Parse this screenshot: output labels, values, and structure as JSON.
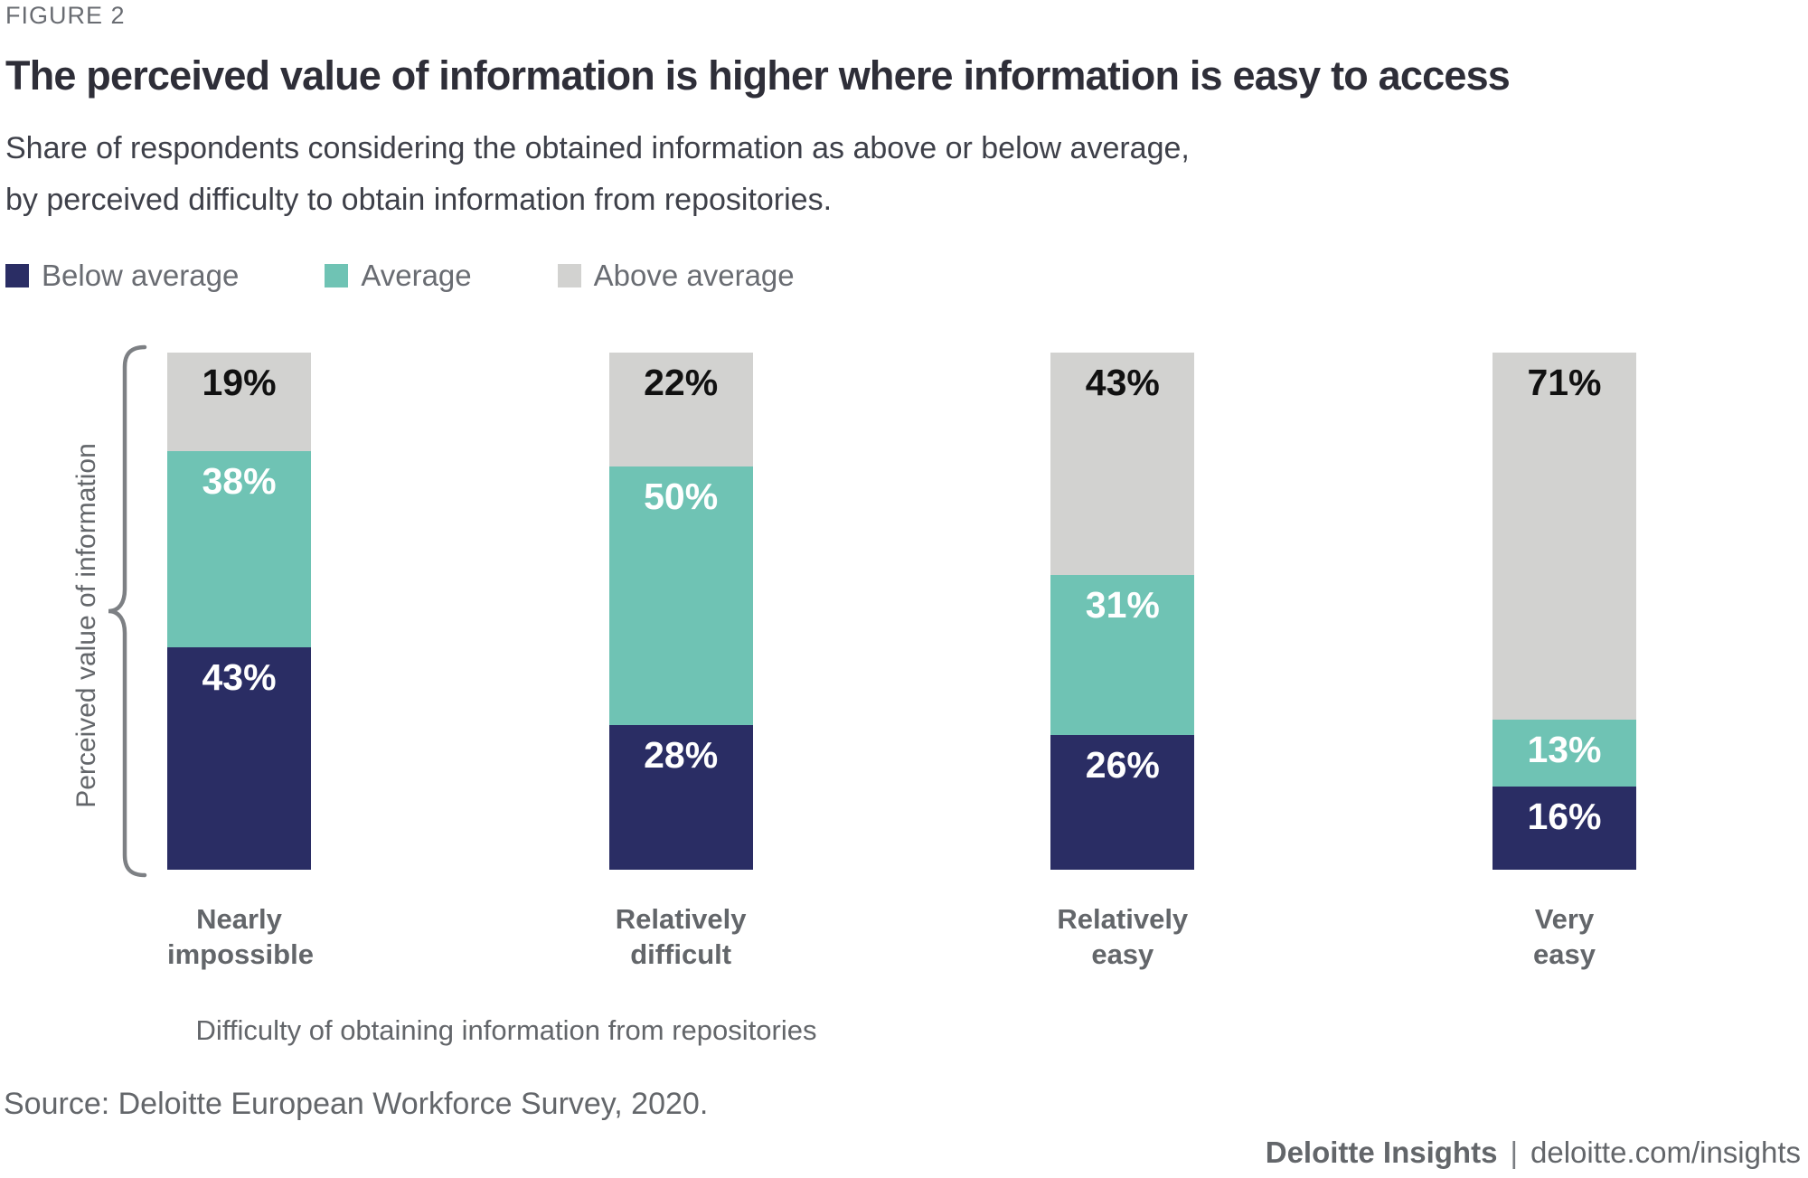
{
  "figure_label": "FIGURE 2",
  "title": "The perceived value of information is higher where information is easy to access",
  "subtitle_line1": "Share of respondents considering the obtained information as above or below average,",
  "subtitle_line2": "by perceived difficulty to obtain information from repositories.",
  "legend": [
    {
      "label": "Below average",
      "color": "#2A2D64"
    },
    {
      "label": "Average",
      "color": "#6FC3B4"
    },
    {
      "label": "Above average",
      "color": "#D2D2D0"
    }
  ],
  "y_axis_label": "Perceived value of information",
  "x_axis_label": "Difficulty of obtaining information from repositories",
  "source": "Source: Deloitte European Workforce Survey, 2020.",
  "footer": {
    "brand": "Deloitte Insights",
    "separator": "|",
    "url": "deloitte.com/insights"
  },
  "colors": {
    "below_average": "#2A2D64",
    "average": "#6FC3B4",
    "above_average": "#D2D2D0",
    "title_text": "#2E2E38",
    "body_text": "#63666A",
    "brace_stroke": "#7D8084"
  },
  "chart_data": {
    "type": "bar",
    "stacked": true,
    "unit": "%",
    "ylim": [
      0,
      100
    ],
    "grid": false,
    "legend_position": "top-left",
    "categories": [
      {
        "label": "Nearly impossible",
        "lines": [
          "Nearly",
          "impossible"
        ]
      },
      {
        "label": "Relatively difficult",
        "lines": [
          "Relatively",
          "difficult"
        ]
      },
      {
        "label": "Relatively easy",
        "lines": [
          "Relatively",
          "easy"
        ]
      },
      {
        "label": "Very easy",
        "lines": [
          "Very",
          "easy"
        ]
      }
    ],
    "series": [
      {
        "name": "Below average",
        "color": "#2A2D64",
        "label_color": "#FFFFFF",
        "values": [
          43,
          28,
          26,
          16
        ]
      },
      {
        "name": "Average",
        "color": "#6FC3B4",
        "label_color": "#FFFFFF",
        "values": [
          38,
          50,
          31,
          13
        ]
      },
      {
        "name": "Above average",
        "color": "#D2D2D0",
        "label_color": "#111111",
        "values": [
          19,
          22,
          43,
          71
        ]
      }
    ]
  }
}
